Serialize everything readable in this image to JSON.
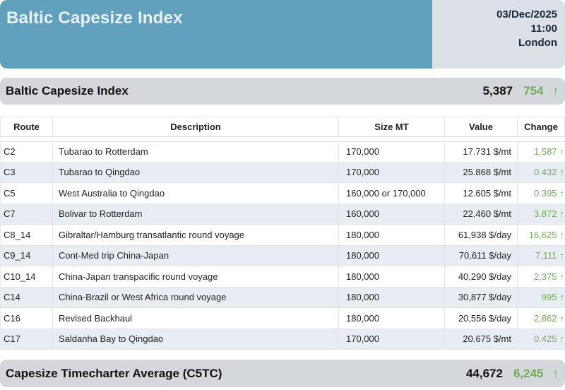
{
  "header": {
    "title": "Baltic Capesize Index",
    "date": "03/Dec/2025",
    "time": "11:00",
    "location": "London"
  },
  "index_bar": {
    "label": "Baltic Capesize Index",
    "value": "5,387",
    "change": "754",
    "direction": "up"
  },
  "table": {
    "columns": [
      "Route",
      "Description",
      "Size MT",
      "Value",
      "Change"
    ],
    "rows": [
      {
        "route": "C2",
        "description": "Tubarao to Rotterdam",
        "size": "170,000",
        "value": "17.731 $/mt",
        "change": "1.587",
        "direction": "up"
      },
      {
        "route": "C3",
        "description": "Tubarao to Qingdao",
        "size": "170,000",
        "value": "25.868 $/mt",
        "change": "0.432",
        "direction": "up"
      },
      {
        "route": "C5",
        "description": "West Australia to Qingdao",
        "size": "160,000 or 170,000",
        "value": "12.605 $/mt",
        "change": "0.395",
        "direction": "up"
      },
      {
        "route": "C7",
        "description": "Bolivar to Rotterdam",
        "size": "160,000",
        "value": "22.460 $/mt",
        "change": "3.872",
        "direction": "up"
      },
      {
        "route": "C8_14",
        "description": "Gibraltar/Hamburg transatlantic round voyage",
        "size": "180,000",
        "value": "61,938 $/day",
        "change": "16,625",
        "direction": "up"
      },
      {
        "route": "C9_14",
        "description": "Cont-Med trip China-Japan",
        "size": "180,000",
        "value": "70,611 $/day",
        "change": "7,111",
        "direction": "up"
      },
      {
        "route": "C10_14",
        "description": "China-Japan transpacific round voyage",
        "size": "180,000",
        "value": "40,290 $/day",
        "change": "2,375",
        "direction": "up"
      },
      {
        "route": "C14",
        "description": "China-Brazil or West Africa round voyage",
        "size": "180,000",
        "value": "30,877 $/day",
        "change": "995",
        "direction": "up"
      },
      {
        "route": "C16",
        "description": "Revised Backhaul",
        "size": "180,000",
        "value": "20,556 $/day",
        "change": "2,862",
        "direction": "up"
      },
      {
        "route": "C17",
        "description": "Saldanha Bay to Qingdao",
        "size": "170,000",
        "value": "20.675 $/mt",
        "change": "0.425",
        "direction": "up"
      }
    ]
  },
  "summary_bar": {
    "label": "Capesize Timecharter Average (C5TC)",
    "value": "44,672",
    "change": "6,245",
    "direction": "up"
  },
  "icons": {
    "up_arrow": "↑"
  },
  "colors": {
    "accent_teal": "#61A1BE",
    "header_date_bg": "#DCE0E7",
    "bar_gray": "#D4D8DD",
    "positive_green": "#72AD55",
    "row_stripe": "#E8EDF3"
  }
}
